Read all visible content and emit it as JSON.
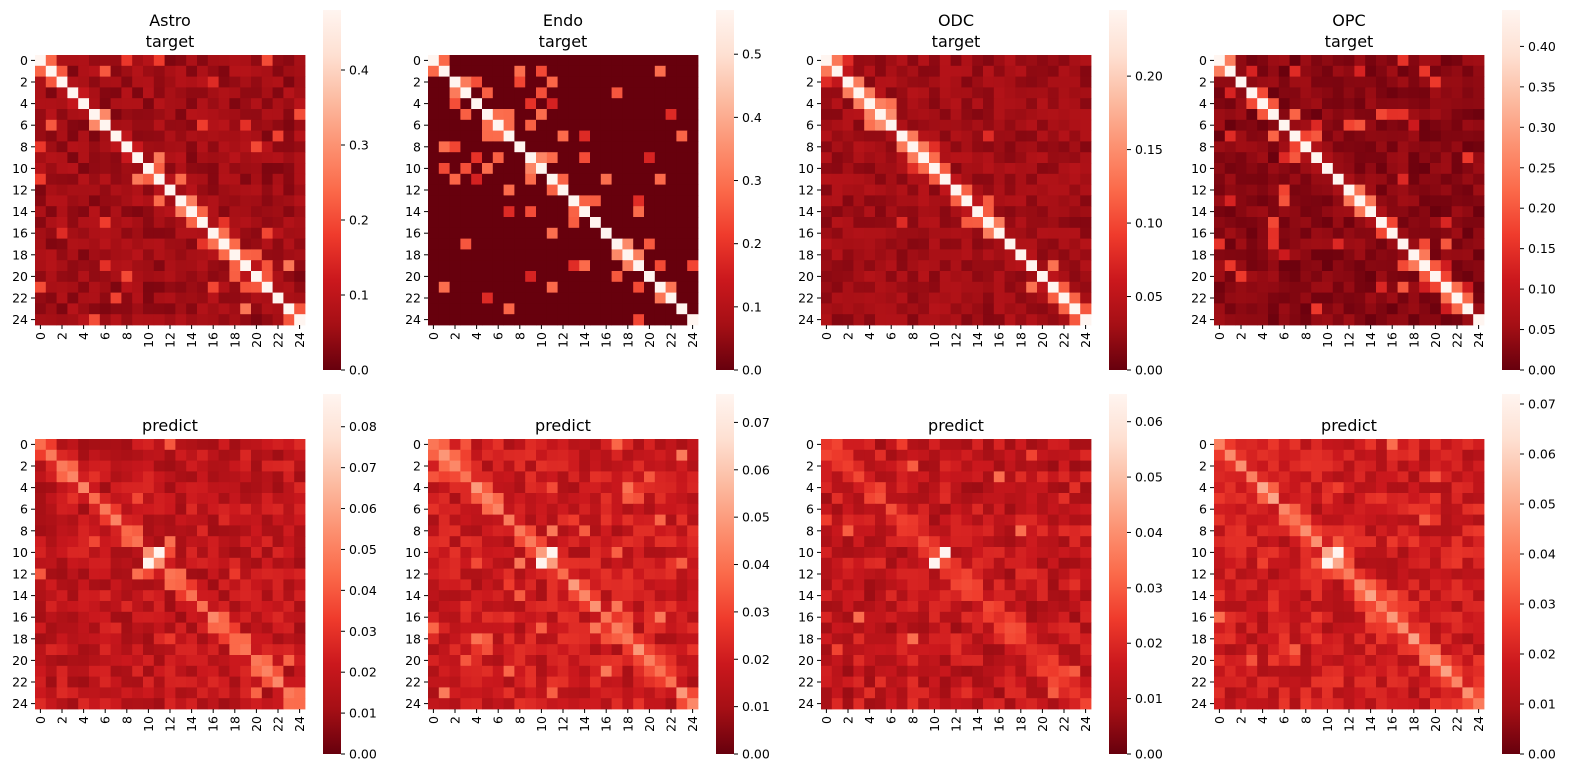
{
  "figure": {
    "background": "#ffffff"
  },
  "colormap": {
    "name": "Reds_r",
    "stops": [
      "#67000d",
      "#a50f15",
      "#cb181d",
      "#ef3b2c",
      "#fb6a4a",
      "#fc9272",
      "#fcbba1",
      "#fee0d2",
      "#fff5f0"
    ]
  },
  "chart_data": [
    {
      "type": "heatmap",
      "cell_type": "Astro",
      "row": "target",
      "title": [
        "Astro",
        "target"
      ],
      "size": 25,
      "vmax": 0.48,
      "tick_labels": [
        "0",
        "2",
        "4",
        "6",
        "8",
        "10",
        "12",
        "14",
        "16",
        "18",
        "20",
        "22",
        "24"
      ],
      "colorbar": {
        "range": [
          0,
          0.48
        ],
        "ticks": [
          "0.0",
          "0.1",
          "0.2",
          "0.3",
          "0.4"
        ],
        "tick_values": [
          0,
          0.1,
          0.2,
          0.3,
          0.4
        ]
      },
      "pattern": {
        "seed": 11,
        "diag": 0.48,
        "near": 0.3,
        "near_prob": 0.45,
        "bg_mean": 0.045,
        "bg_spread": 0.07,
        "spike_prob": 0.05,
        "spike_level": 0.22,
        "zero_prob": 0.0
      }
    },
    {
      "type": "heatmap",
      "cell_type": "Endo",
      "row": "target",
      "title": [
        "Endo",
        "target"
      ],
      "size": 25,
      "vmax": 0.57,
      "tick_labels": [
        "0",
        "2",
        "4",
        "6",
        "8",
        "10",
        "12",
        "14",
        "16",
        "18",
        "20",
        "22",
        "24"
      ],
      "colorbar": {
        "range": [
          0,
          0.57
        ],
        "ticks": [
          "0.0",
          "0.1",
          "0.2",
          "0.3",
          "0.4",
          "0.5"
        ],
        "tick_values": [
          0,
          0.1,
          0.2,
          0.3,
          0.4,
          0.5
        ]
      },
      "pattern": {
        "seed": 23,
        "diag": 0.57,
        "near": 0.35,
        "near_prob": 0.4,
        "bg_mean": 0.0,
        "bg_spread": 0.0,
        "spike_prob": 0.06,
        "spike_level": 0.25,
        "zero_prob": 0.95
      }
    },
    {
      "type": "heatmap",
      "cell_type": "ODC",
      "row": "target",
      "title": [
        "ODC",
        "target"
      ],
      "size": 25,
      "vmax": 0.245,
      "tick_labels": [
        "0",
        "2",
        "4",
        "6",
        "8",
        "10",
        "12",
        "14",
        "16",
        "18",
        "20",
        "22",
        "24"
      ],
      "colorbar": {
        "range": [
          0,
          0.245
        ],
        "ticks": [
          "0.00",
          "0.05",
          "0.10",
          "0.15",
          "0.20"
        ],
        "tick_values": [
          0,
          0.05,
          0.1,
          0.15,
          0.2
        ]
      },
      "pattern": {
        "seed": 37,
        "diag": 0.245,
        "near": 0.15,
        "near_prob": 0.5,
        "bg_mean": 0.025,
        "bg_spread": 0.03,
        "spike_prob": 0.02,
        "spike_level": 0.08,
        "zero_prob": 0.0
      }
    },
    {
      "type": "heatmap",
      "cell_type": "OPC",
      "row": "target",
      "title": [
        "OPC",
        "target"
      ],
      "size": 25,
      "vmax": 0.445,
      "tick_labels": [
        "0",
        "2",
        "4",
        "6",
        "8",
        "10",
        "12",
        "14",
        "16",
        "18",
        "20",
        "22",
        "24"
      ],
      "colorbar": {
        "range": [
          0,
          0.445
        ],
        "ticks": [
          "0.00",
          "0.05",
          "0.10",
          "0.15",
          "0.20",
          "0.25",
          "0.30",
          "0.35",
          "0.40"
        ],
        "tick_values": [
          0,
          0.05,
          0.1,
          0.15,
          0.2,
          0.25,
          0.3,
          0.35,
          0.4
        ]
      },
      "pattern": {
        "seed": 41,
        "diag": 0.445,
        "near": 0.25,
        "near_prob": 0.45,
        "bg_mean": 0.02,
        "bg_spread": 0.05,
        "spike_prob": 0.07,
        "spike_level": 0.18,
        "zero_prob": 0.0
      }
    },
    {
      "type": "heatmap",
      "cell_type": "Astro",
      "row": "predict",
      "title": [
        "predict"
      ],
      "size": 25,
      "vmax": 0.088,
      "tick_labels": [
        "0",
        "2",
        "4",
        "6",
        "8",
        "10",
        "12",
        "14",
        "16",
        "18",
        "20",
        "22",
        "24"
      ],
      "colorbar": {
        "range": [
          0,
          0.088
        ],
        "ticks": [
          "0.00",
          "0.01",
          "0.02",
          "0.03",
          "0.04",
          "0.05",
          "0.06",
          "0.07",
          "0.08"
        ],
        "tick_values": [
          0,
          0.01,
          0.02,
          0.03,
          0.04,
          0.05,
          0.06,
          0.07,
          0.08
        ]
      },
      "pattern": {
        "seed": 53,
        "diag": 0.055,
        "near": 0.045,
        "near_prob": 0.4,
        "bg_mean": 0.016,
        "bg_spread": 0.018,
        "spike_prob": 0.03,
        "spike_level": 0.038,
        "zero_prob": 0.0,
        "hot_diag": [
          10,
          11
        ]
      }
    },
    {
      "type": "heatmap",
      "cell_type": "Endo",
      "row": "predict",
      "title": [
        "predict"
      ],
      "size": 25,
      "vmax": 0.076,
      "tick_labels": [
        "0",
        "2",
        "4",
        "6",
        "8",
        "10",
        "12",
        "14",
        "16",
        "18",
        "20",
        "22",
        "24"
      ],
      "colorbar": {
        "range": [
          0,
          0.076
        ],
        "ticks": [
          "0.00",
          "0.01",
          "0.02",
          "0.03",
          "0.04",
          "0.05",
          "0.06",
          "0.07"
        ],
        "tick_values": [
          0,
          0.01,
          0.02,
          0.03,
          0.04,
          0.05,
          0.06,
          0.07
        ]
      },
      "pattern": {
        "seed": 67,
        "diag": 0.05,
        "near": 0.04,
        "near_prob": 0.4,
        "bg_mean": 0.016,
        "bg_spread": 0.016,
        "spike_prob": 0.03,
        "spike_level": 0.035,
        "zero_prob": 0.0,
        "hot_diag": [
          10,
          11
        ]
      }
    },
    {
      "type": "heatmap",
      "cell_type": "ODC",
      "row": "predict",
      "title": [
        "predict"
      ],
      "size": 25,
      "vmax": 0.065,
      "tick_labels": [
        "0",
        "2",
        "4",
        "6",
        "8",
        "10",
        "12",
        "14",
        "16",
        "18",
        "20",
        "22",
        "24"
      ],
      "colorbar": {
        "range": [
          0,
          0.065
        ],
        "ticks": [
          "0.00",
          "0.01",
          "0.02",
          "0.03",
          "0.04",
          "0.05",
          "0.06"
        ],
        "tick_values": [
          0,
          0.01,
          0.02,
          0.03,
          0.04,
          0.05,
          0.06
        ]
      },
      "pattern": {
        "seed": 79,
        "diag": 0.028,
        "near": 0.022,
        "near_prob": 0.25,
        "bg_mean": 0.012,
        "bg_spread": 0.015,
        "spike_prob": 0.03,
        "spike_level": 0.03,
        "zero_prob": 0.0,
        "hot_diag": [
          10,
          11
        ]
      }
    },
    {
      "type": "heatmap",
      "cell_type": "OPC",
      "row": "predict",
      "title": [
        "predict"
      ],
      "size": 25,
      "vmax": 0.072,
      "tick_labels": [
        "0",
        "2",
        "4",
        "6",
        "8",
        "10",
        "12",
        "14",
        "16",
        "18",
        "20",
        "22",
        "24"
      ],
      "colorbar": {
        "range": [
          0,
          0.072
        ],
        "ticks": [
          "0.00",
          "0.01",
          "0.02",
          "0.03",
          "0.04",
          "0.05",
          "0.06",
          "0.07"
        ],
        "tick_values": [
          0,
          0.01,
          0.02,
          0.03,
          0.04,
          0.05,
          0.06,
          0.07
        ]
      },
      "pattern": {
        "seed": 83,
        "diag": 0.05,
        "near": 0.038,
        "near_prob": 0.4,
        "bg_mean": 0.016,
        "bg_spread": 0.016,
        "spike_prob": 0.04,
        "spike_level": 0.032,
        "zero_prob": 0.0,
        "hot_diag": [
          10,
          11
        ]
      }
    }
  ]
}
